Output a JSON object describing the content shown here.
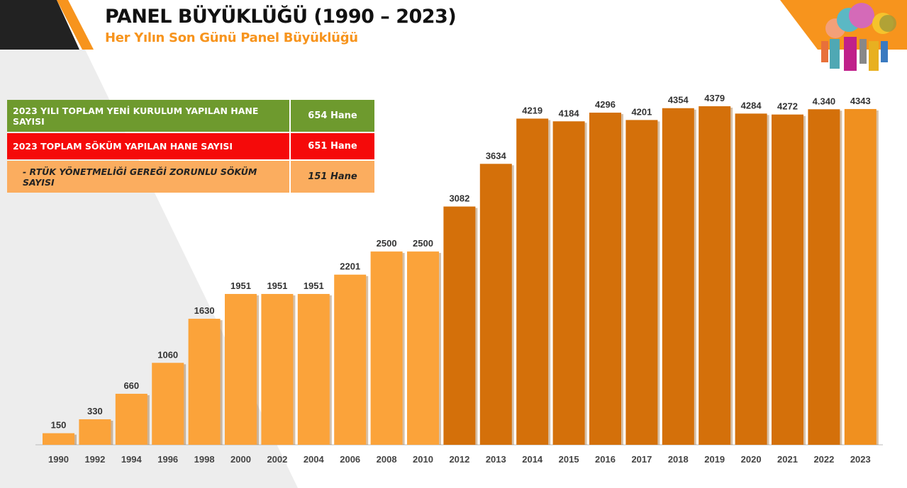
{
  "header": {
    "title": "PANEL BÜYÜKLÜĞÜ (1990 – 2023)",
    "subtitle": "Her Yılın Son Günü Panel Büyüklüğü"
  },
  "table": [
    {
      "label": "2023 YILI TOPLAM YENİ KURULUM YAPILAN HANE SAYISI",
      "value": "654 Hane",
      "color": "#6E9A2E"
    },
    {
      "label": "2023 TOPLAM SÖKÜM YAPILAN HANE SAYISI",
      "value": "651 Hane",
      "color": "#F50A0A"
    },
    {
      "label": "- RTÜK YÖNETMELİĞİ GEREĞİ ZORUNLU SÖKÜM SAYISI",
      "value": "151 Hane",
      "color": "#FBAD5F"
    }
  ],
  "chart_data": {
    "type": "bar",
    "categories": [
      "1990",
      "1992",
      "1994",
      "1996",
      "1998",
      "2000",
      "2002",
      "2004",
      "2006",
      "2008",
      "2010",
      "2012",
      "2013",
      "2014",
      "2015",
      "2016",
      "2017",
      "2018",
      "2019",
      "2020",
      "2021",
      "2022",
      "2023"
    ],
    "values": [
      150,
      330,
      660,
      1060,
      1630,
      1951,
      1951,
      1951,
      2201,
      2500,
      2500,
      3082,
      3634,
      4219,
      4184,
      4296,
      4201,
      4354,
      4379,
      4284,
      4272,
      4340,
      4343
    ],
    "labels": [
      "150",
      "330",
      "660",
      "1060",
      "1630",
      "1951",
      "1951",
      "1951",
      "2201",
      "2500",
      "2500",
      "3082",
      "3634",
      "4219",
      "4184",
      "4296",
      "4201",
      "4354",
      "4379",
      "4284",
      "4272",
      "4.340",
      "4343"
    ],
    "ylim": [
      0,
      4400
    ],
    "grid": false,
    "colors": {
      "early": "#FBA33A",
      "late": "#D4700A",
      "latest": "#F0901F"
    }
  }
}
